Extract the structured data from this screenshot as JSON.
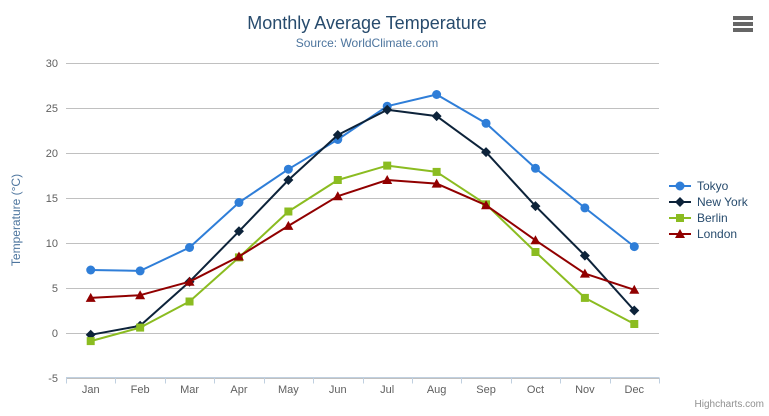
{
  "chart": {
    "credits": "Highcharts.com",
    "theme": {
      "background": "#ffffff",
      "title_color": "#274b6d",
      "subtitle_color": "#4d759e",
      "axis_title_color": "#4d759e",
      "label_color": "#606060",
      "grid_color": "#c0c0c0",
      "axis_line_color": "#c0d0e0",
      "legend_text_color": "#274b6d",
      "credits_color": "#909090",
      "menu_icon_color": "#666666"
    }
  },
  "chart_data": {
    "type": "line",
    "title": "Monthly Average Temperature",
    "subtitle": "Source: WorldClimate.com",
    "xlabel": "",
    "ylabel": "Temperature (°C)",
    "ylim": [
      -5,
      30
    ],
    "ytick_interval": 5,
    "yticks": [
      -5,
      0,
      5,
      10,
      15,
      20,
      25,
      30
    ],
    "grid": true,
    "legend_position": "right",
    "categories": [
      "Jan",
      "Feb",
      "Mar",
      "Apr",
      "May",
      "Jun",
      "Jul",
      "Aug",
      "Sep",
      "Oct",
      "Nov",
      "Dec"
    ],
    "series": [
      {
        "name": "Tokyo",
        "color": "#2f7ed8",
        "marker": "circle",
        "values": [
          7.0,
          6.9,
          9.5,
          14.5,
          18.2,
          21.5,
          25.2,
          26.5,
          23.3,
          18.3,
          13.9,
          9.6
        ]
      },
      {
        "name": "New York",
        "color": "#0d233a",
        "marker": "diamond",
        "values": [
          -0.2,
          0.8,
          5.7,
          11.3,
          17.0,
          22.0,
          24.8,
          24.1,
          20.1,
          14.1,
          8.6,
          2.5
        ]
      },
      {
        "name": "Berlin",
        "color": "#8bbc21",
        "marker": "square",
        "values": [
          -0.9,
          0.6,
          3.5,
          8.4,
          13.5,
          17.0,
          18.6,
          17.9,
          14.3,
          9.0,
          3.9,
          1.0
        ]
      },
      {
        "name": "London",
        "color": "#910000",
        "marker": "triangle",
        "values": [
          3.9,
          4.2,
          5.7,
          8.5,
          11.9,
          15.2,
          17.0,
          16.6,
          14.2,
          10.3,
          6.6,
          4.8
        ]
      }
    ]
  }
}
